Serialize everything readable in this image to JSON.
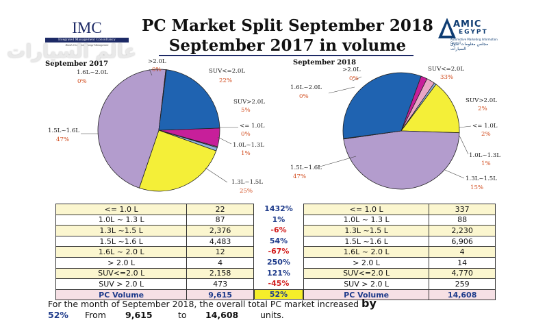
{
  "header": {
    "title_line1": "PC Market Split September 2018",
    "title_line2": "September 2017 in volume",
    "imc_logo": "IMC",
    "imc_subtitle": "Integrated Management Consultancy",
    "imc_tagline": "Hands On Action Change Management",
    "amic_logo": "AMIC",
    "amic_logo2": "EGYPT",
    "amic_subtitle": "Automotive Marketing Information Council",
    "amic_arabic": "مجلس معلومات سوق السيارات",
    "watermark": "عالم السيارات"
  },
  "colors": {
    "seg_le_1_0": "#e9a7c6",
    "seg_1_0_1_3": "#8eb4de",
    "seg_1_3_1_5": "#f4ef38",
    "seg_1_5_1_6": "#b39ccd",
    "seg_1_6_2_0": "#dddddd",
    "seg_gt_2_0": "#cccccc",
    "seg_suv_le_2_0": "#1f63b1",
    "seg_suv_gt_2_0": "#c71f9a",
    "pct_positive": "#1d3a8a",
    "pct_negative": "#d21e1e",
    "label_pct": "#d24c1e"
  },
  "chart_data": [
    {
      "type": "pie",
      "title": "September 2017",
      "categories": [
        "<= 1.0L",
        "1.0L~1.3L",
        "1.3L~1.5L",
        "1.5L~1.6L",
        "1.6L~2.0L",
        ">2.0L",
        "SUV<=2.0L",
        "SUV>2.0L"
      ],
      "values": [
        22,
        87,
        2376,
        4483,
        12,
        4,
        2158,
        473
      ],
      "label_percents": [
        "0%",
        "1%",
        "25%",
        "47%",
        "0%",
        "0%",
        "22%",
        "5%"
      ]
    },
    {
      "type": "pie",
      "title": "September 2018",
      "categories": [
        "<= 1.0L",
        "1.0L~1.3L",
        "1.3L~1.5L",
        "1.5L~1.6L",
        "1.6L~2.0L",
        ">2.0L",
        "SUV<=2.0L",
        "SUV>2.0L"
      ],
      "values": [
        337,
        88,
        2230,
        6906,
        4,
        14,
        4770,
        259
      ],
      "label_percents": [
        "2%",
        "1%",
        "15%",
        "47%",
        "0%",
        "0%",
        "33%",
        "2%"
      ]
    }
  ],
  "table": {
    "rows_2017": [
      {
        "segment": "<= 1.0 L",
        "value": "22"
      },
      {
        "segment": "1.0L ~ 1.3 L",
        "value": "87"
      },
      {
        "segment": "1.3L ~1.5 L",
        "value": "2,376"
      },
      {
        "segment": "1.5L ~1.6 L",
        "value": "4,483"
      },
      {
        "segment": "1.6L ~ 2.0 L",
        "value": "12"
      },
      {
        "segment": "> 2.0 L",
        "value": "4"
      },
      {
        "segment": "SUV<=2.0 L",
        "value": "2,158"
      },
      {
        "segment": "SUV > 2.0 L",
        "value": "473"
      }
    ],
    "total_2017": {
      "segment": "PC Volume",
      "value": "9,615"
    },
    "changes": [
      "1432%",
      "1%",
      "-6%",
      "54%",
      "-67%",
      "250%",
      "121%",
      "-45%"
    ],
    "total_change": "52%",
    "rows_2018": [
      {
        "segment": "<= 1.0 L",
        "value": "337"
      },
      {
        "segment": "1.0L ~ 1.3 L",
        "value": "88"
      },
      {
        "segment": "1.3L ~1.5 L",
        "value": "2,230"
      },
      {
        "segment": "1.5L ~1.6 L",
        "value": "6,906"
      },
      {
        "segment": "1.6L ~ 2.0 L",
        "value": "4"
      },
      {
        "segment": "> 2.0 L",
        "value": "14"
      },
      {
        "segment": "SUV<=2.0 L",
        "value": "4,770"
      },
      {
        "segment": "SUV > 2.0 L",
        "value": "259"
      }
    ],
    "total_2018": {
      "segment": "PC Volume",
      "value": "14,608"
    }
  },
  "summary": {
    "line1_text": "For the month of September 2018,  the overall total PC market increased ",
    "line1_by": "by",
    "pct": "52%",
    "from_label": "From",
    "from_value": "9,615",
    "to_label": "to",
    "to_value": "14,608",
    "units": "units."
  }
}
